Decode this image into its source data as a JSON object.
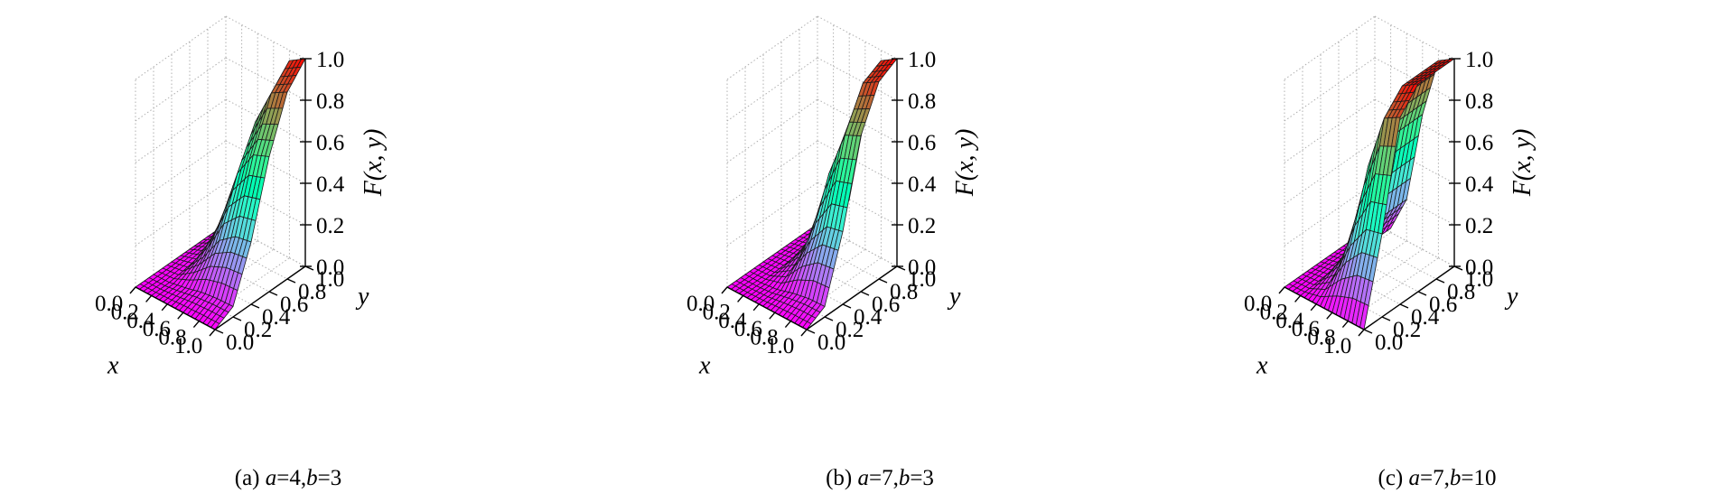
{
  "chart_data": [
    {
      "type": "surface",
      "panel": "a",
      "caption": {
        "prefix": "(a) ",
        "a_var": "a",
        "a_val": "=4,",
        "b_var": "b",
        "b_val": "=3"
      },
      "params": {
        "a": 4,
        "b": 3
      },
      "xlabel": "x",
      "ylabel": "y",
      "zlabel": "F(x, y)",
      "xlim": [
        0,
        1
      ],
      "ylim": [
        0,
        1
      ],
      "zlim": [
        0,
        1
      ],
      "xticks": [
        "0.0",
        "0.2",
        "0.4",
        "0.6",
        "0.8",
        "1.0"
      ],
      "yticks": [
        "0.0",
        "0.2",
        "0.4",
        "0.6",
        "0.8",
        "1.0"
      ],
      "zticks": [
        "0.0",
        "0.2",
        "0.4",
        "0.6",
        "0.8",
        "1.0"
      ],
      "colormap": "rainbow",
      "grid": true,
      "z_at_y_max": {
        "x": [
          0.0,
          0.2,
          0.4,
          0.6,
          0.8,
          1.0
        ],
        "z": [
          0.0,
          0.05,
          0.35,
          0.75,
          0.95,
          1.0
        ]
      },
      "z_at_x_max": {
        "y": [
          0.0,
          0.2,
          0.4,
          0.6,
          0.8,
          1.0
        ],
        "z": [
          0.0,
          0.05,
          0.3,
          0.65,
          0.9,
          1.0
        ]
      }
    },
    {
      "type": "surface",
      "panel": "b",
      "caption": {
        "prefix": "(b) ",
        "a_var": "a",
        "a_val": "=7,",
        "b_var": "b",
        "b_val": "=3"
      },
      "params": {
        "a": 7,
        "b": 3
      },
      "xlabel": "x",
      "ylabel": "y",
      "zlabel": "F(x, y)",
      "xlim": [
        0,
        1
      ],
      "ylim": [
        0,
        1
      ],
      "zlim": [
        0,
        1
      ],
      "xticks": [
        "0.0",
        "0.2",
        "0.4",
        "0.6",
        "0.8",
        "1.0"
      ],
      "yticks": [
        "0.0",
        "0.2",
        "0.4",
        "0.6",
        "0.8",
        "1.0"
      ],
      "zticks": [
        "0.0",
        "0.2",
        "0.4",
        "0.6",
        "0.8",
        "1.0"
      ],
      "colormap": "rainbow",
      "grid": true,
      "z_at_y_max": {
        "x": [
          0.0,
          0.2,
          0.4,
          0.6,
          0.8,
          1.0
        ],
        "z": [
          0.0,
          0.02,
          0.2,
          0.65,
          0.95,
          1.0
        ]
      },
      "z_at_x_max": {
        "y": [
          0.0,
          0.2,
          0.4,
          0.6,
          0.8,
          1.0
        ],
        "z": [
          0.0,
          0.05,
          0.35,
          0.75,
          0.95,
          1.0
        ]
      }
    },
    {
      "type": "surface",
      "panel": "c",
      "caption": {
        "prefix": "(c) ",
        "a_var": "a",
        "a_val": "=7,",
        "b_var": "b",
        "b_val": "=10"
      },
      "params": {
        "a": 7,
        "b": 10
      },
      "xlabel": "x",
      "ylabel": "y",
      "zlabel": "F(x, y)",
      "xlim": [
        0,
        1
      ],
      "ylim": [
        0,
        1
      ],
      "zlim": [
        0,
        1
      ],
      "xticks": [
        "0.0",
        "0.2",
        "0.4",
        "0.6",
        "0.8",
        "1.0"
      ],
      "yticks": [
        "0.0",
        "0.2",
        "0.4",
        "0.6",
        "0.8",
        "1.0"
      ],
      "zticks": [
        "0.0",
        "0.2",
        "0.4",
        "0.6",
        "0.8",
        "1.0"
      ],
      "colormap": "rainbow",
      "grid": true,
      "z_at_y_max": {
        "x": [
          0.0,
          0.2,
          0.4,
          0.6,
          0.8,
          1.0
        ],
        "z": [
          0.0,
          0.02,
          0.2,
          0.65,
          0.95,
          1.0
        ]
      },
      "z_at_x_max": {
        "y": [
          0.0,
          0.2,
          0.4,
          0.6,
          0.8,
          1.0
        ],
        "z": [
          0.0,
          0.4,
          0.9,
          1.0,
          1.0,
          1.0
        ]
      }
    }
  ]
}
